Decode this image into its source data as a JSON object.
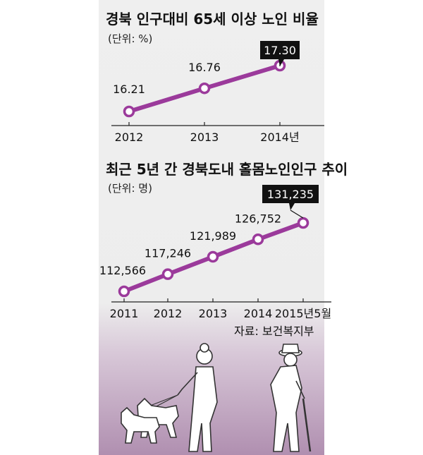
{
  "chart_data": [
    {
      "type": "line",
      "title": "경북 인구대비 65세 이상 노인 비율",
      "unit": "(단위: %)",
      "categories": [
        "2012",
        "2013",
        "2014년"
      ],
      "values": [
        16.21,
        16.76,
        17.3
      ],
      "labels": [
        "16.21",
        "16.76",
        "17.30"
      ],
      "highlight_last": true,
      "color": "#9b3a9b"
    },
    {
      "type": "line",
      "title": "최근 5년 간 경북도내 홀몸노인인구 추이",
      "unit": "(단위: 명)",
      "categories": [
        "2011",
        "2012",
        "2013",
        "2014",
        "2015년5월"
      ],
      "values": [
        112566,
        117246,
        121989,
        126752,
        131235
      ],
      "labels": [
        "112,566",
        "117,246",
        "121,989",
        "126,752",
        "131,235"
      ],
      "highlight_last": true,
      "color": "#9b3a9b"
    }
  ],
  "source": "자료: 보건복지부"
}
